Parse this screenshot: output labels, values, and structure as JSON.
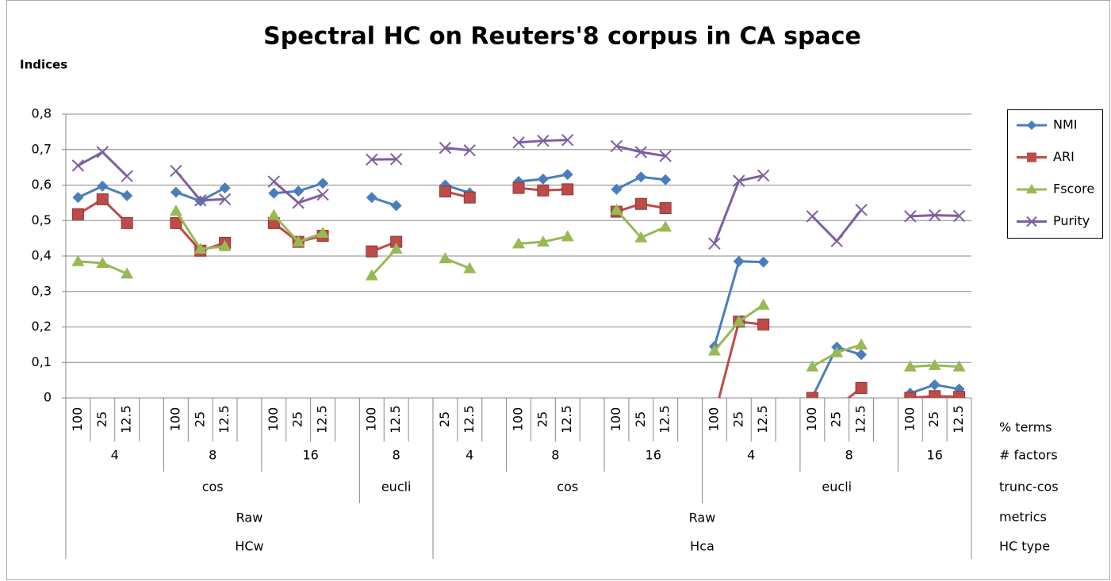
{
  "chart_data": {
    "type": "line",
    "title": "Spectral HC on Reuters'8 corpus in CA space",
    "y_label": "Indices",
    "categories_name": "% terms",
    "categories": [
      "100",
      "25",
      "12.5",
      null,
      "100",
      "25",
      "12.5",
      null,
      "100",
      "25",
      "12.5",
      null,
      "100",
      "12.5",
      null,
      "25",
      "12.5",
      null,
      "100",
      "25",
      "12.5",
      null,
      "100",
      "25",
      "12.5",
      null,
      "100",
      "25",
      "12.5",
      null,
      "100",
      "25",
      "12.5",
      null,
      "100",
      "25",
      "12.5"
    ],
    "category_levels": [
      {
        "name": "# factors",
        "groups": [
          {
            "label": "4",
            "span": 4
          },
          {
            "label": "8",
            "span": 4
          },
          {
            "label": "16",
            "span": 4
          },
          {
            "label": "8",
            "span": 3
          },
          {
            "label": "4",
            "span": 3
          },
          {
            "label": "8",
            "span": 4
          },
          {
            "label": "16",
            "span": 4
          },
          {
            "label": "4",
            "span": 4
          },
          {
            "label": "8",
            "span": 4
          },
          {
            "label": "16",
            "span": 3
          }
        ]
      },
      {
        "name": "trunc-cos",
        "groups": [
          {
            "label": "cos",
            "span": 12
          },
          {
            "label": "eucli",
            "span": 3
          },
          {
            "label": "cos",
            "span": 11
          },
          {
            "label": "eucli",
            "span": 11
          }
        ]
      },
      {
        "name": "metrics",
        "groups": [
          {
            "label": "Raw",
            "span": 15
          },
          {
            "label": "Raw",
            "span": 22
          }
        ]
      },
      {
        "name": "HC type",
        "groups": [
          {
            "label": "HCw",
            "span": 15
          },
          {
            "label": "Hca",
            "span": 22
          }
        ]
      }
    ],
    "ylim": [
      0,
      0.8
    ],
    "yticks": [
      0,
      {
        "value": 0.1,
        "label": "0,1"
      },
      {
        "value": 0.2,
        "label": "0,2"
      },
      {
        "value": 0.3,
        "label": "0,3"
      },
      {
        "value": 0.4,
        "label": "0,4"
      },
      {
        "value": 0.5,
        "label": "0,5"
      },
      {
        "value": 0.6,
        "label": "0,6"
      },
      {
        "value": 0.7,
        "label": "0,7"
      },
      {
        "value": 0.8,
        "label": "0,8"
      }
    ],
    "grid": true,
    "legend": "right",
    "series": [
      {
        "name": "NMI",
        "color": "#4a7ebb",
        "marker": "diamond",
        "values": [
          0.565,
          0.597,
          0.57,
          null,
          0.58,
          0.555,
          0.592,
          null,
          0.577,
          0.583,
          0.605,
          null,
          0.565,
          0.542,
          null,
          0.6,
          0.578,
          null,
          0.61,
          0.617,
          0.63,
          null,
          0.588,
          0.623,
          0.615,
          null,
          0.145,
          0.385,
          0.383,
          null,
          0.002,
          0.143,
          0.122,
          null,
          0.013,
          0.037,
          0.025
        ]
      },
      {
        "name": "ARI",
        "color": "#be4b48",
        "marker": "square",
        "values": [
          0.518,
          0.56,
          0.493,
          null,
          0.493,
          0.415,
          0.437,
          null,
          0.493,
          0.44,
          0.457,
          null,
          0.413,
          0.44,
          null,
          0.582,
          0.565,
          null,
          0.592,
          0.585,
          0.588,
          null,
          0.525,
          0.547,
          0.535,
          null,
          -0.05,
          0.215,
          0.207,
          null,
          0.0,
          -0.026,
          0.028,
          null,
          0.0,
          0.005,
          0.003
        ]
      },
      {
        "name": "Fscore",
        "color": "#98b954",
        "marker": "triangle",
        "values": [
          0.385,
          0.38,
          0.35,
          null,
          0.527,
          0.42,
          0.427,
          null,
          0.515,
          0.44,
          0.465,
          null,
          0.345,
          0.42,
          null,
          0.393,
          0.365,
          null,
          0.435,
          0.44,
          0.455,
          null,
          0.53,
          0.452,
          0.482,
          null,
          0.133,
          0.215,
          0.262,
          null,
          0.088,
          0.128,
          0.15,
          null,
          0.088,
          0.092,
          0.088
        ]
      },
      {
        "name": "Purity",
        "color": "#7d5fa0",
        "marker": "x",
        "values": [
          0.655,
          0.693,
          0.625,
          null,
          0.64,
          0.557,
          0.56,
          null,
          0.61,
          0.55,
          0.573,
          null,
          0.672,
          0.673,
          null,
          0.705,
          0.698,
          null,
          0.72,
          0.725,
          0.727,
          null,
          0.71,
          0.693,
          0.682,
          null,
          0.435,
          0.612,
          0.627,
          null,
          0.512,
          0.442,
          0.53,
          null,
          0.512,
          0.515,
          0.513
        ]
      }
    ]
  }
}
